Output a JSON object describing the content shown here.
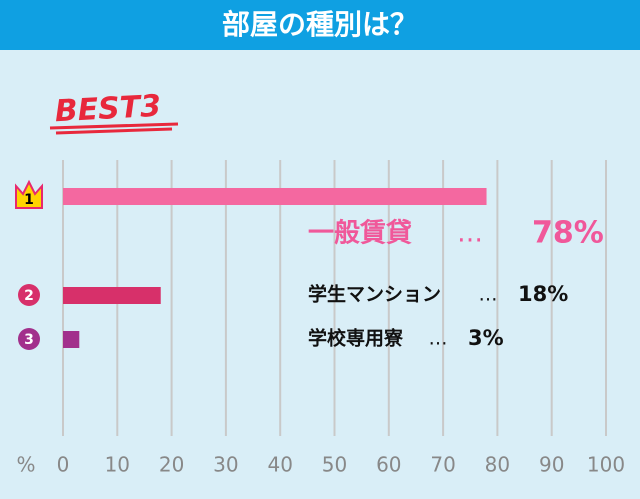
{
  "chart_data": {
    "type": "bar",
    "title": "部屋の種別は？",
    "badge": "BEST3",
    "categories": [
      "一般賃貸",
      "学生マンション",
      "学校専用寮"
    ],
    "values": [
      78,
      18,
      3
    ],
    "value_labels": [
      "78%",
      "18%",
      "3%"
    ],
    "separator": "…",
    "ranks": [
      "1",
      "2",
      "3"
    ],
    "colors": [
      "#f468a0",
      "#d7306a",
      "#a2308c"
    ],
    "xlim": [
      0,
      100
    ],
    "xticks": [
      0,
      10,
      20,
      30,
      40,
      50,
      60,
      70,
      80,
      90,
      100
    ],
    "x_unit": "%",
    "grid": true
  }
}
